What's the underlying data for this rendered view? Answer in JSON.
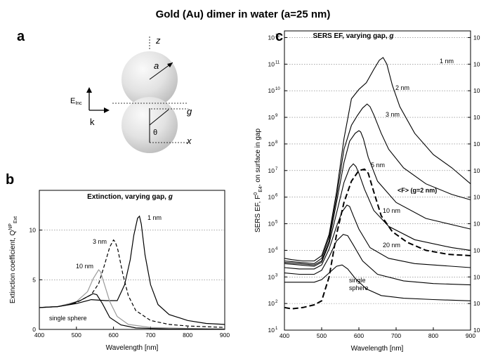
{
  "figure": {
    "title": "Gold (Au) dimer in water (a=25 nm)"
  },
  "schematic": {
    "panel_letter": "a",
    "labels": {
      "z": "z",
      "a": "a",
      "E": "E",
      "Einc_sub": "Inc",
      "k": "k",
      "g": "g",
      "theta": "θ",
      "x": "x"
    }
  },
  "colors": {
    "sphere_light": "#fafafa",
    "sphere_dark": "#b9b9b9",
    "line": "#000000",
    "gray_curve": "#9a9a9a"
  },
  "chart_data": [
    {
      "panel_letter": "b",
      "type": "line",
      "title": "Extinction, varying gap, g",
      "title_main": "Extinction, varying gap, ",
      "title_var": "g",
      "xlabel": "Wavelength [nm]",
      "ylabel": "Extinction coefficient, Q",
      "ylabel_sup": "NP",
      "ylabel_sub": "Ext",
      "xlim": [
        400,
        900
      ],
      "ylim": [
        0,
        14
      ],
      "xticks": [
        400,
        500,
        600,
        700,
        800,
        900
      ],
      "yticks": [
        0,
        5,
        10
      ],
      "grid": "horizontal dotted",
      "series": [
        {
          "name": "1 nm",
          "style": "solid",
          "color": "#000000",
          "x": [
            400,
            450,
            500,
            540,
            580,
            610,
            630,
            645,
            655,
            665,
            670,
            675,
            685,
            700,
            720,
            750,
            800,
            850,
            900
          ],
          "y": [
            2.2,
            2.3,
            2.6,
            3.0,
            2.9,
            2.9,
            4.5,
            7.0,
            9.5,
            11.2,
            11.4,
            10.6,
            7.5,
            4.5,
            2.5,
            1.5,
            0.9,
            0.6,
            0.5
          ]
        },
        {
          "name": "3 nm",
          "style": "dashed",
          "color": "#000000",
          "x": [
            400,
            450,
            500,
            540,
            560,
            575,
            590,
            600,
            605,
            612,
            625,
            640,
            660,
            700,
            750,
            800,
            900
          ],
          "y": [
            2.2,
            2.3,
            2.7,
            3.5,
            4.6,
            6.4,
            8.3,
            9.0,
            8.8,
            8.0,
            5.6,
            3.4,
            1.9,
            0.9,
            0.5,
            0.35,
            0.2
          ]
        },
        {
          "name": "10 nm",
          "style": "solid",
          "color": "#9a9a9a",
          "x": [
            400,
            450,
            500,
            530,
            545,
            560,
            565,
            575,
            590,
            610,
            640,
            700,
            800,
            900
          ],
          "y": [
            2.2,
            2.3,
            2.8,
            3.8,
            5.1,
            6.0,
            5.8,
            4.6,
            2.8,
            1.3,
            0.5,
            0.2,
            0.1,
            0.05
          ]
        },
        {
          "name": "single sphere",
          "style": "solid",
          "color": "#000000",
          "x": [
            400,
            450,
            480,
            510,
            530,
            545,
            555,
            570,
            590,
            620,
            660,
            750,
            900
          ],
          "y": [
            2.2,
            2.3,
            2.5,
            2.9,
            3.3,
            3.6,
            3.5,
            2.6,
            1.2,
            0.45,
            0.15,
            0.05,
            0.02
          ]
        }
      ],
      "labels": {
        "one": "1 nm",
        "three": "3 nm",
        "ten": "10 nm",
        "single": "single sphere"
      }
    },
    {
      "panel_letter": "c",
      "type": "line",
      "title": "SERS EF, varying gap, g",
      "title_main": "SERS EF, varying gap, ",
      "title_var": "g",
      "xlabel": "Wavelength [nm]",
      "ylabel": "SERS EF, F",
      "ylabel_sup": "0",
      "ylabel_sub": "E4",
      "ylabel_rest": ", on surface in gap",
      "xlim": [
        400,
        900
      ],
      "ylim_exp": [
        1,
        12
      ],
      "yscale": "log",
      "xticks": [
        400,
        500,
        600,
        700,
        800,
        900
      ],
      "ytick_base": "10",
      "ytick_exponents": [
        "1",
        "2",
        "3",
        "4",
        "5",
        "6",
        "7",
        "8",
        "9",
        "10",
        "11",
        "12"
      ],
      "right_ytick_labels": [
        "10",
        "10",
        "10",
        "10",
        "10",
        "10",
        "10",
        "10",
        "10",
        "10",
        "10",
        "10"
      ],
      "grid": "horizontal dotted",
      "series": [
        {
          "name": "1 nm",
          "style": "solid",
          "x": [
            400,
            420,
            450,
            480,
            500,
            520,
            540,
            560,
            580,
            600,
            620,
            640,
            655,
            665,
            675,
            690,
            710,
            750,
            800,
            850,
            900
          ],
          "y_exp": [
            3.7,
            3.65,
            3.6,
            3.6,
            3.8,
            4.6,
            6.2,
            8.2,
            9.7,
            10.05,
            10.3,
            10.8,
            11.15,
            11.25,
            11.0,
            10.2,
            9.4,
            8.4,
            7.6,
            7.1,
            6.5
          ]
        },
        {
          "name": "2 nm",
          "style": "solid",
          "x": [
            400,
            440,
            480,
            500,
            520,
            540,
            560,
            580,
            595,
            610,
            622,
            630,
            640,
            660,
            680,
            720,
            780,
            850,
            900
          ],
          "y_exp": [
            3.6,
            3.55,
            3.5,
            3.7,
            4.5,
            6.0,
            7.8,
            8.7,
            9.05,
            9.35,
            9.5,
            9.4,
            9.1,
            8.4,
            7.8,
            7.1,
            6.5,
            6.1,
            5.9
          ]
        },
        {
          "name": "3 nm",
          "style": "solid",
          "x": [
            400,
            440,
            480,
            500,
            520,
            540,
            560,
            575,
            590,
            600,
            605,
            612,
            625,
            650,
            700,
            780,
            900
          ],
          "y_exp": [
            3.55,
            3.5,
            3.45,
            3.6,
            4.35,
            5.8,
            7.3,
            8.1,
            8.4,
            8.5,
            8.45,
            8.2,
            7.5,
            6.6,
            5.8,
            5.2,
            4.8
          ]
        },
        {
          "name": "5 nm",
          "style": "solid",
          "x": [
            400,
            440,
            480,
            500,
            520,
            540,
            560,
            575,
            585,
            592,
            600,
            615,
            640,
            680,
            750,
            850,
            900
          ],
          "y_exp": [
            3.5,
            3.45,
            3.4,
            3.55,
            4.25,
            5.4,
            6.55,
            7.1,
            7.25,
            7.15,
            6.9,
            6.3,
            5.5,
            4.9,
            4.4,
            4.1,
            4.0
          ]
        },
        {
          "name": "10 nm",
          "style": "solid",
          "x": [
            400,
            440,
            480,
            500,
            520,
            540,
            555,
            568,
            575,
            585,
            600,
            630,
            680,
            750,
            900
          ],
          "y_exp": [
            3.35,
            3.3,
            3.3,
            3.45,
            4.05,
            4.9,
            5.45,
            5.7,
            5.65,
            5.3,
            4.8,
            4.1,
            3.7,
            3.5,
            3.35
          ]
        },
        {
          "name": "20 nm",
          "style": "solid",
          "x": [
            400,
            440,
            480,
            500,
            520,
            540,
            558,
            570,
            585,
            610,
            650,
            720,
            800,
            900
          ],
          "y_exp": [
            3.15,
            3.1,
            3.1,
            3.25,
            3.75,
            4.35,
            4.6,
            4.55,
            4.2,
            3.6,
            3.1,
            2.85,
            2.75,
            2.7
          ]
        },
        {
          "name": "single sphere",
          "style": "solid",
          "x": [
            400,
            440,
            480,
            500,
            520,
            540,
            555,
            570,
            590,
            620,
            660,
            720,
            800,
            900
          ],
          "y_exp": [
            2.8,
            2.8,
            2.8,
            2.9,
            3.15,
            3.4,
            3.45,
            3.3,
            2.95,
            2.55,
            2.3,
            2.2,
            2.15,
            2.1
          ]
        },
        {
          "name": "<F> (g=2 nm)",
          "style": "dashed",
          "x": [
            400,
            420,
            450,
            480,
            500,
            520,
            540,
            560,
            580,
            600,
            615,
            625,
            640,
            660,
            690,
            730,
            780,
            840,
            900
          ],
          "y_exp": [
            1.85,
            1.8,
            1.85,
            1.95,
            2.1,
            3.0,
            4.6,
            5.8,
            6.6,
            7.0,
            7.05,
            6.9,
            6.2,
            5.3,
            4.7,
            4.3,
            4.0,
            3.85,
            3.8
          ]
        }
      ],
      "labels": {
        "one": "1 nm",
        "two": "2 nm",
        "three": "3 nm",
        "five": "5 nm",
        "ten": "10 nm",
        "twenty": "20 nm",
        "single_line1": "single",
        "single_line2": "sphere",
        "avg_main": "<F> (g=2 nm)"
      }
    }
  ]
}
